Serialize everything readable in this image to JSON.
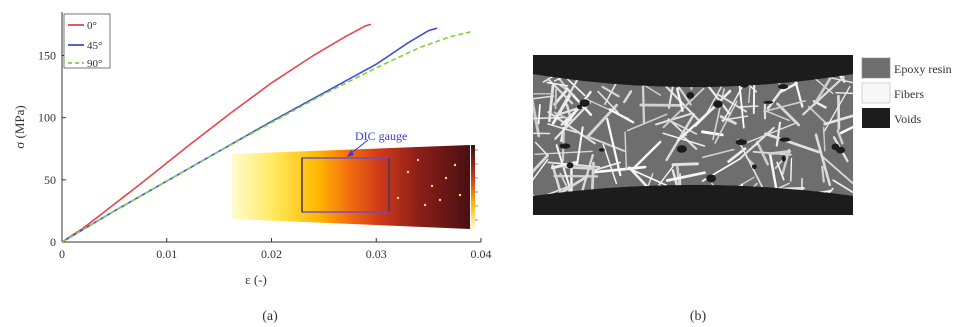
{
  "chart_data": {
    "type": "line",
    "xlabel": "ε (-)",
    "ylabel": "σ (MPa)",
    "xlim": [
      0,
      0.04
    ],
    "ylim": [
      0,
      185
    ],
    "xticks": [
      "0",
      "0.01",
      "0.02",
      "0.03",
      "0.04"
    ],
    "yticks": [
      "0",
      "50",
      "100",
      "150"
    ],
    "grid": false,
    "legend_position": "top-left",
    "series": [
      {
        "name": "0°",
        "color": "#e8454a",
        "dash": "solid",
        "x": [
          0,
          0.002,
          0.004,
          0.008,
          0.012,
          0.016,
          0.02,
          0.024,
          0.027,
          0.029,
          0.0295
        ],
        "y": [
          0,
          11,
          24,
          50,
          77,
          103,
          128,
          150,
          165,
          174,
          175
        ]
      },
      {
        "name": "45°",
        "color": "#3f4fd6",
        "dash": "solid",
        "x": [
          0,
          0.002,
          0.005,
          0.01,
          0.015,
          0.02,
          0.025,
          0.03,
          0.033,
          0.035,
          0.0358
        ],
        "y": [
          0,
          10,
          25,
          49,
          73,
          97,
          120,
          143,
          160,
          170,
          172
        ]
      },
      {
        "name": "90°",
        "color": "#7fd13b",
        "dash": "dashed",
        "x": [
          0,
          0.002,
          0.005,
          0.01,
          0.015,
          0.02,
          0.025,
          0.03,
          0.034,
          0.037,
          0.039
        ],
        "y": [
          0,
          10,
          25,
          49,
          73,
          96,
          119,
          140,
          156,
          165,
          169
        ]
      }
    ],
    "annotations": [
      "DIC gauge"
    ]
  },
  "caption_a": "(a)",
  "caption_b": "(b)",
  "colors": {
    "epoxy": "#6e6e6e",
    "fibers": "#f7f7f7",
    "voids": "#1c1c1c",
    "dic_box": "#6b4bc8"
  },
  "micro_legend": [
    {
      "label": "Epoxy resin",
      "color": "#6e6e6e"
    },
    {
      "label": "Fibers",
      "color": "#f7f7f7"
    },
    {
      "label": "Voids",
      "color": "#1c1c1c"
    }
  ]
}
